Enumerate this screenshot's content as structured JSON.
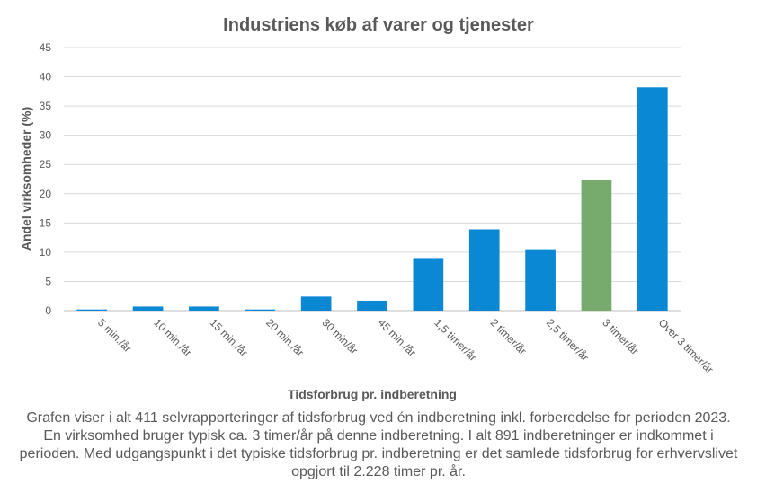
{
  "chart_data": {
    "type": "bar",
    "title": "Industriens køb af varer og tjenester",
    "xlabel": "Tidsforbrug pr. indberetning",
    "ylabel": "Andel virksomheder (%)",
    "ylim": [
      0,
      45
    ],
    "yticks": [
      0,
      5,
      10,
      15,
      20,
      25,
      30,
      35,
      40,
      45
    ],
    "grid": true,
    "categories": [
      "5 min./år",
      "10 min./år",
      "15 min./år",
      "20 min./år",
      "30 min/år",
      "45 min./år",
      "1,5 timer/år",
      "2 timer/år",
      "2,5 timer/år",
      "3 timer/år",
      "Over 3 timer/år"
    ],
    "values": [
      0.2,
      0.7,
      0.7,
      0.2,
      2.4,
      1.7,
      9.0,
      13.9,
      10.5,
      22.3,
      38.2
    ],
    "highlight_index": 9,
    "colors": {
      "bar": "#0a88d4",
      "highlight": "#77ab6e",
      "grid": "#d9d9d9",
      "axis": "#bfbfbf"
    }
  },
  "caption": "Grafen viser i alt 411 selvrapporteringer af tidsforbrug ved én indberetning inkl. forberedelse for perioden 2023. En virksomhed bruger typisk ca. 3 timer/år på denne indberetning. I alt 891 indberetninger er indkommet i perioden. Med udgangspunkt i det typiske tidsforbrug pr. indberetning er det samlede tidsforbrug for erhvervslivet opgjort til 2.228 timer pr. år."
}
